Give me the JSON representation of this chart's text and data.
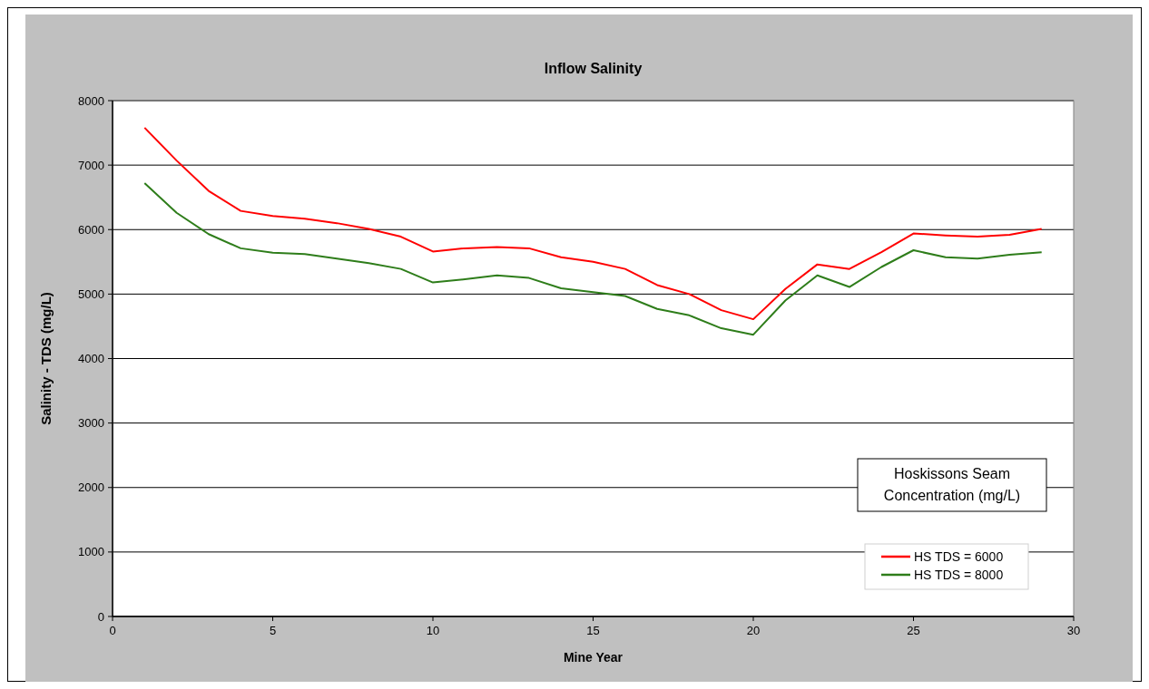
{
  "chart_data": {
    "type": "line",
    "title": "Inflow Salinity",
    "xlabel": "Mine Year",
    "ylabel": "Salinity  - TDS (mg/L)",
    "legend_title": "Hoskissons Seam Concentration (mg/L)",
    "x": [
      1,
      2,
      3,
      4,
      5,
      6,
      7,
      8,
      9,
      10,
      11,
      12,
      13,
      14,
      15,
      16,
      17,
      18,
      19,
      20,
      21,
      22,
      23,
      24,
      25,
      26,
      27,
      28,
      29
    ],
    "series": [
      {
        "name": "HS TDS = 6000",
        "color": "#ff0000",
        "values": [
          7580,
          7070,
          6600,
          6290,
          6210,
          6170,
          6100,
          6010,
          5890,
          5660,
          5710,
          5730,
          5710,
          5570,
          5500,
          5390,
          5140,
          5000,
          4750,
          4610,
          5080,
          5460,
          5390,
          5650,
          5940,
          5910,
          5890,
          5920,
          6010
        ]
      },
      {
        "name": "HS TDS = 8000",
        "color": "#2e7d1a",
        "values": [
          6720,
          6260,
          5930,
          5710,
          5640,
          5620,
          5550,
          5480,
          5390,
          5180,
          5230,
          5290,
          5250,
          5090,
          5030,
          4970,
          4770,
          4670,
          4470,
          4370,
          4900,
          5290,
          5110,
          5420,
          5680,
          5570,
          5550,
          5610,
          5650
        ]
      }
    ],
    "xlim": [
      0,
      30
    ],
    "xticks": [
      0,
      5,
      10,
      15,
      20,
      25,
      30
    ],
    "ylim": [
      0,
      8000
    ],
    "yticks": [
      0,
      1000,
      2000,
      3000,
      4000,
      5000,
      6000,
      7000,
      8000
    ],
    "grid": "y",
    "legend": "bottom right",
    "marker": "none",
    "line_style": "solid"
  }
}
